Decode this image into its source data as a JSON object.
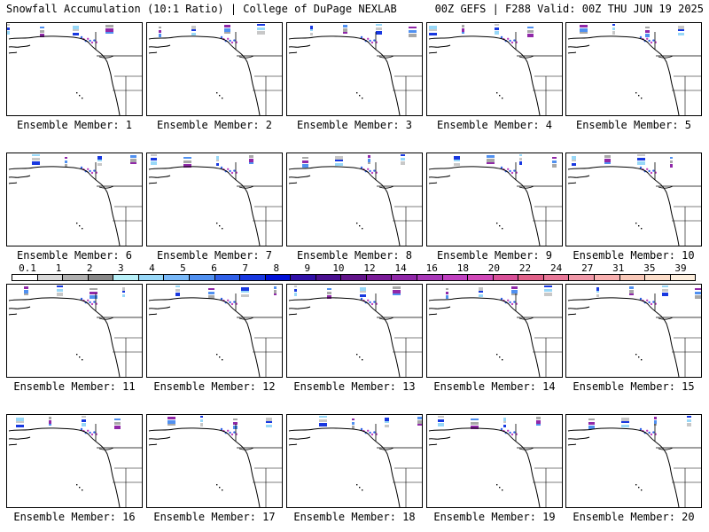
{
  "header": {
    "left_title": "Snowfall Accumulation (10:1 Ratio) | College of DuPage NEXLAB",
    "right_title": "00Z GEFS | F288 Valid: 00Z THU JUN 19 2025"
  },
  "panels": [
    {
      "label": "Ensemble Member: 1"
    },
    {
      "label": "Ensemble Member: 2"
    },
    {
      "label": "Ensemble Member: 3"
    },
    {
      "label": "Ensemble Member: 4"
    },
    {
      "label": "Ensemble Member: 5"
    },
    {
      "label": "Ensemble Member: 6"
    },
    {
      "label": "Ensemble Member: 7"
    },
    {
      "label": "Ensemble Member: 8"
    },
    {
      "label": "Ensemble Member: 9"
    },
    {
      "label": "Ensemble Member: 10"
    },
    {
      "label": "Ensemble Member: 11"
    },
    {
      "label": "Ensemble Member: 12"
    },
    {
      "label": "Ensemble Member: 13"
    },
    {
      "label": "Ensemble Member: 14"
    },
    {
      "label": "Ensemble Member: 15"
    },
    {
      "label": "Ensemble Member: 16"
    },
    {
      "label": "Ensemble Member: 17"
    },
    {
      "label": "Ensemble Member: 18"
    },
    {
      "label": "Ensemble Member: 19"
    },
    {
      "label": "Ensemble Member: 20"
    }
  ],
  "colorbar": {
    "ticks": [
      "0.1",
      "1",
      "2",
      "3",
      "4",
      "5",
      "6",
      "7",
      "8",
      "9",
      "10",
      "12",
      "14",
      "16",
      "18",
      "20",
      "22",
      "24",
      "27",
      "31",
      "35",
      "39"
    ],
    "colors": [
      "#ffffff",
      "#d9d9d9",
      "#b0b0b0",
      "#888888",
      "#b8f0f8",
      "#98d8f8",
      "#78b8f8",
      "#5090f0",
      "#3060e8",
      "#1838e0",
      "#0010d8",
      "#3010a8",
      "#4a1090",
      "#62148a",
      "#7a1c98",
      "#9028a8",
      "#a838b8",
      "#c040c0",
      "#d048b8",
      "#d85098",
      "#e06088",
      "#e87898",
      "#f098a8",
      "#f8b0b0",
      "#f8c8b8",
      "#fbdcc8",
      "#fdeedd"
    ]
  }
}
